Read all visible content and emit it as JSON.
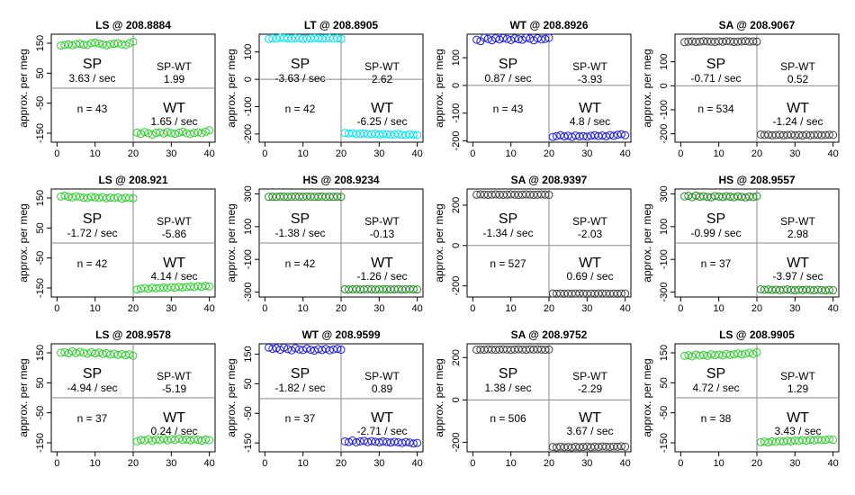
{
  "chart_data": [
    {
      "type": "scatter",
      "title": "LS @ 208.8884",
      "color": "#32cd32",
      "ylabel": "approx. per meg",
      "ylim": [
        -180,
        180
      ],
      "yticks": [
        150,
        50,
        -50,
        -150
      ],
      "xticks": [
        0,
        10,
        20,
        30,
        40
      ],
      "xlim": [
        -1.5,
        41.5
      ],
      "sp_values": [
        142,
        144,
        146,
        143,
        147,
        148,
        145,
        144,
        150,
        152,
        149,
        146,
        143,
        147,
        148,
        150,
        146,
        144,
        150,
        155
      ],
      "wt_values": [
        -148,
        -152,
        -146,
        -150,
        -155,
        -149,
        -147,
        -151,
        -146,
        -150,
        -152,
        -148,
        -145,
        -150,
        -153,
        -149,
        -147,
        -150,
        -145,
        -140
      ],
      "sp_label": "SP",
      "sp_rate": "3.63 / sec",
      "spwt_label": "SP-WT",
      "spwt_value": "1.99",
      "n_label": "n = 43",
      "wt_label": "WT",
      "wt_rate": "1.65 / sec"
    },
    {
      "type": "scatter",
      "title": "LT @ 208.8905",
      "color": "#00e5ee",
      "ylabel": "approx. per meg",
      "ylim": [
        -230,
        165
      ],
      "yticks": [
        100,
        0,
        -100,
        -200
      ],
      "xticks": [
        0,
        10,
        20,
        30,
        40
      ],
      "xlim": [
        -1.5,
        41.5
      ],
      "sp_values": [
        148,
        150,
        149,
        152,
        151,
        150,
        149,
        151,
        150,
        148,
        149,
        150,
        151,
        150,
        149,
        150,
        151,
        149,
        150,
        148
      ],
      "wt_values": [
        -196,
        -198,
        -197,
        -200,
        -199,
        -198,
        -201,
        -200,
        -199,
        -202,
        -200,
        -201,
        -203,
        -202,
        -200,
        -203,
        -204,
        -202,
        -203,
        -204
      ],
      "sp_label": "SP",
      "sp_rate": "-3.63 / sec",
      "spwt_label": "SP-WT",
      "spwt_value": "2.62",
      "n_label": "n = 42",
      "wt_label": "WT",
      "wt_rate": "-6.25 / sec"
    },
    {
      "type": "scatter",
      "title": "WT @ 208.8926",
      "color": "#1e1ee6",
      "ylabel": "approx. per meg",
      "ylim": [
        -205,
        185
      ],
      "yticks": [
        100,
        0,
        -100,
        -200
      ],
      "xticks": [
        0,
        10,
        20,
        30,
        40
      ],
      "xlim": [
        -1.5,
        41.5
      ],
      "sp_values": [
        165,
        160,
        172,
        168,
        163,
        170,
        166,
        171,
        168,
        164,
        170,
        167,
        165,
        172,
        169,
        163,
        170,
        166,
        168,
        172
      ],
      "wt_values": [
        -186,
        -183,
        -180,
        -184,
        -182,
        -186,
        -181,
        -184,
        -183,
        -185,
        -182,
        -180,
        -183,
        -181,
        -184,
        -179,
        -182,
        -178,
        -176,
        -180
      ],
      "sp_label": "SP",
      "sp_rate": "0.87 / sec",
      "spwt_label": "SP-WT",
      "spwt_value": "-3.93",
      "n_label": "n = 43",
      "wt_label": "WT",
      "wt_rate": "4.8 / sec"
    },
    {
      "type": "scatter",
      "title": "SA @ 208.9067",
      "color": "#404040",
      "ylabel": "approx. per meg",
      "ylim": [
        -235,
        215
      ],
      "yticks": [
        100,
        0,
        -100,
        -200
      ],
      "xticks": [
        0,
        10,
        20,
        30,
        40
      ],
      "xlim": [
        -1.5,
        41.5
      ],
      "sp_values": [
        182,
        184,
        185,
        183,
        184,
        186,
        185,
        184,
        183,
        185,
        184,
        186,
        185,
        183,
        184,
        185,
        186,
        184,
        185,
        184
      ],
      "wt_values": [
        -203,
        -205,
        -204,
        -206,
        -205,
        -204,
        -206,
        -205,
        -204,
        -206,
        -205,
        -207,
        -204,
        -206,
        -205,
        -204,
        -206,
        -205,
        -204,
        -205
      ],
      "sp_label": "SP",
      "sp_rate": "-0.71 / sec",
      "spwt_label": "SP-WT",
      "spwt_value": "0.52",
      "n_label": "n = 534",
      "wt_label": "WT",
      "wt_rate": "-1.24 / sec"
    },
    {
      "type": "scatter",
      "title": "LS @ 208.921",
      "color": "#32cd32",
      "ylabel": "approx. per meg",
      "ylim": [
        -180,
        180
      ],
      "yticks": [
        150,
        50,
        -50,
        -150
      ],
      "xticks": [
        0,
        10,
        20,
        30,
        40
      ],
      "xlim": [
        -1.5,
        41.5
      ],
      "sp_values": [
        155,
        158,
        154,
        152,
        156,
        153,
        151,
        150,
        154,
        152,
        150,
        153,
        149,
        151,
        150,
        152,
        148,
        151,
        150,
        149
      ],
      "wt_values": [
        -155,
        -152,
        -150,
        -153,
        -149,
        -151,
        -150,
        -148,
        -150,
        -147,
        -149,
        -146,
        -148,
        -147,
        -145,
        -147,
        -144,
        -146,
        -143,
        -145
      ],
      "sp_label": "SP",
      "sp_rate": "-1.72 / sec",
      "spwt_label": "SP-WT",
      "spwt_value": "-5.86",
      "n_label": "n = 42",
      "wt_label": "WT",
      "wt_rate": "4.14 / sec"
    },
    {
      "type": "scatter",
      "title": "HS @ 208.9234",
      "color": "#228b22",
      "ylabel": "approx. per meg",
      "ylim": [
        -330,
        330
      ],
      "yticks": [
        300,
        100,
        -100,
        -300
      ],
      "xticks": [
        0,
        10,
        20,
        30,
        40
      ],
      "xlim": [
        -1.5,
        41.5
      ],
      "sp_values": [
        282,
        283,
        282,
        284,
        283,
        282,
        283,
        284,
        283,
        282,
        284,
        283,
        282,
        283,
        284,
        282,
        283,
        282,
        283,
        282
      ],
      "wt_values": [
        -283,
        -284,
        -283,
        -282,
        -284,
        -283,
        -282,
        -283,
        -284,
        -283,
        -282,
        -283,
        -284,
        -283,
        -282,
        -284,
        -283,
        -282,
        -283,
        -284
      ],
      "sp_label": "SP",
      "sp_rate": "-1.38 / sec",
      "spwt_label": "SP-WT",
      "spwt_value": "-0.13",
      "n_label": "n = 42",
      "wt_label": "WT",
      "wt_rate": "-1.26 / sec"
    },
    {
      "type": "scatter",
      "title": "SA @ 208.9397",
      "color": "#404040",
      "ylabel": "approx. per meg",
      "ylim": [
        -255,
        280
      ],
      "yticks": [
        200,
        0,
        -200
      ],
      "xticks": [
        0,
        10,
        20,
        30,
        40
      ],
      "xlim": [
        -1.5,
        41.5
      ],
      "sp_values": [
        252,
        253,
        252,
        251,
        252,
        253,
        252,
        251,
        252,
        253,
        252,
        251,
        252,
        253,
        252,
        251,
        252,
        253,
        252,
        251
      ],
      "wt_values": [
        -238,
        -239,
        -238,
        -239,
        -238,
        -239,
        -238,
        -237,
        -238,
        -239,
        -238,
        -239,
        -238,
        -237,
        -238,
        -239,
        -238,
        -239,
        -238,
        -238
      ],
      "sp_label": "SP",
      "sp_rate": "-1.34 / sec",
      "spwt_label": "SP-WT",
      "spwt_value": "-2.03",
      "n_label": "n = 527",
      "wt_label": "WT",
      "wt_rate": "0.69 / sec"
    },
    {
      "type": "scatter",
      "title": "HS @ 208.9557",
      "color": "#228b22",
      "ylabel": "approx. per meg",
      "ylim": [
        -330,
        330
      ],
      "yticks": [
        300,
        100,
        -100,
        -300
      ],
      "xticks": [
        0,
        10,
        20,
        30,
        40
      ],
      "xlim": [
        -1.5,
        41.5
      ],
      "sp_values": [
        285,
        288,
        280,
        290,
        283,
        286,
        282,
        279,
        287,
        284,
        281,
        286,
        283,
        280,
        285,
        282,
        279,
        284,
        281,
        286
      ],
      "wt_values": [
        -283,
        -286,
        -284,
        -287,
        -285,
        -288,
        -286,
        -284,
        -287,
        -289,
        -286,
        -288,
        -285,
        -287,
        -289,
        -286,
        -288,
        -290,
        -287,
        -289
      ],
      "sp_label": "SP",
      "sp_rate": "-0.99 / sec",
      "spwt_label": "SP-WT",
      "spwt_value": "2.98",
      "n_label": "n = 37",
      "wt_label": "WT",
      "wt_rate": "-3.97 / sec"
    },
    {
      "type": "scatter",
      "title": "LS @ 208.9578",
      "color": "#32cd32",
      "ylabel": "approx. per meg",
      "ylim": [
        -180,
        180
      ],
      "yticks": [
        150,
        50,
        -50,
        -150
      ],
      "xticks": [
        0,
        10,
        20,
        30,
        40
      ],
      "xlim": [
        -1.5,
        41.5
      ],
      "sp_values": [
        150,
        152,
        148,
        155,
        149,
        153,
        150,
        147,
        152,
        148,
        151,
        146,
        149,
        144,
        147,
        143,
        146,
        142,
        145,
        140
      ],
      "wt_values": [
        -145,
        -140,
        -142,
        -138,
        -144,
        -139,
        -141,
        -137,
        -142,
        -138,
        -140,
        -136,
        -141,
        -139,
        -142,
        -138,
        -140,
        -143,
        -139,
        -141
      ],
      "sp_label": "SP",
      "sp_rate": "-4.94 / sec",
      "spwt_label": "SP-WT",
      "spwt_value": "-5.19",
      "n_label": "n = 37",
      "wt_label": "WT",
      "wt_rate": "0.24 / sec"
    },
    {
      "type": "scatter",
      "title": "WT @ 208.9599",
      "color": "#1e1ee6",
      "ylabel": "approx. per meg",
      "ylim": [
        -180,
        185
      ],
      "yticks": [
        150,
        50,
        -50,
        -150
      ],
      "xticks": [
        0,
        10,
        20,
        30,
        40
      ],
      "xlim": [
        -1.5,
        41.5
      ],
      "sp_values": [
        172,
        168,
        170,
        165,
        172,
        167,
        163,
        170,
        166,
        164,
        169,
        165,
        162,
        167,
        164,
        168,
        163,
        166,
        168,
        165
      ],
      "wt_values": [
        -145,
        -147,
        -142,
        -148,
        -145,
        -143,
        -147,
        -144,
        -146,
        -148,
        -145,
        -147,
        -149,
        -146,
        -148,
        -150,
        -147,
        -149,
        -152,
        -150
      ],
      "sp_label": "SP",
      "sp_rate": "-1.82 / sec",
      "spwt_label": "SP-WT",
      "spwt_value": "0.89",
      "n_label": "n = 37",
      "wt_label": "WT",
      "wt_rate": "-2.71 / sec"
    },
    {
      "type": "scatter",
      "title": "SA @ 208.9752",
      "color": "#404040",
      "ylabel": "approx. per meg",
      "ylim": [
        -245,
        265
      ],
      "yticks": [
        200,
        0,
        -200
      ],
      "xticks": [
        0,
        10,
        20,
        30,
        40
      ],
      "xlim": [
        -1.5,
        41.5
      ],
      "sp_values": [
        237,
        238,
        237,
        239,
        238,
        237,
        238,
        239,
        238,
        237,
        238,
        239,
        238,
        237,
        239,
        238,
        239,
        238,
        237,
        238
      ],
      "wt_values": [
        -222,
        -224,
        -221,
        -223,
        -222,
        -224,
        -221,
        -223,
        -222,
        -220,
        -223,
        -221,
        -222,
        -220,
        -221,
        -222,
        -220,
        -221,
        -219,
        -221
      ],
      "sp_label": "SP",
      "sp_rate": "1.38 / sec",
      "spwt_label": "SP-WT",
      "spwt_value": "-2.29",
      "n_label": "n = 506",
      "wt_label": "WT",
      "wt_rate": "3.67 / sec"
    },
    {
      "type": "scatter",
      "title": "LS @ 208.9905",
      "color": "#32cd32",
      "ylabel": "approx. per meg",
      "ylim": [
        -180,
        180
      ],
      "yticks": [
        150,
        50,
        -50,
        -150
      ],
      "xticks": [
        0,
        10,
        20,
        30,
        40
      ],
      "xlim": [
        -1.5,
        41.5
      ],
      "sp_values": [
        140,
        142,
        138,
        144,
        141,
        143,
        140,
        145,
        142,
        144,
        141,
        146,
        143,
        145,
        148,
        144,
        147,
        150,
        146,
        152
      ],
      "wt_values": [
        -148,
        -146,
        -149,
        -145,
        -147,
        -144,
        -146,
        -143,
        -145,
        -142,
        -144,
        -141,
        -143,
        -140,
        -142,
        -139,
        -141,
        -140,
        -138,
        -140
      ],
      "sp_label": "SP",
      "sp_rate": "4.72 / sec",
      "spwt_label": "SP-WT",
      "spwt_value": "1.29",
      "n_label": "n = 38",
      "wt_label": "WT",
      "wt_rate": "3.43 / sec"
    }
  ]
}
